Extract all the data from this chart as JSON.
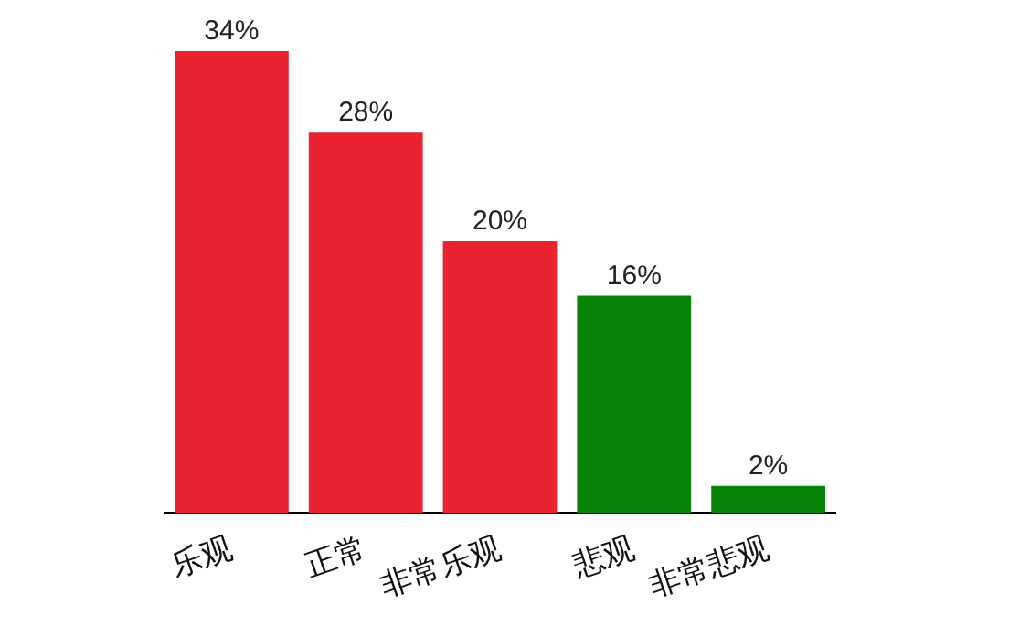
{
  "chart_data": {
    "type": "bar",
    "categories": [
      "乐观",
      "正常",
      "非常乐观",
      "悲观",
      "非常悲观"
    ],
    "values": [
      34,
      28,
      20,
      16,
      2
    ],
    "value_labels": [
      "34%",
      "28%",
      "20%",
      "16%",
      "2%"
    ],
    "colors": [
      "#e8222e",
      "#e8222e",
      "#e8222e",
      "#078407",
      "#078407"
    ],
    "grid": false,
    "legend": false
  }
}
